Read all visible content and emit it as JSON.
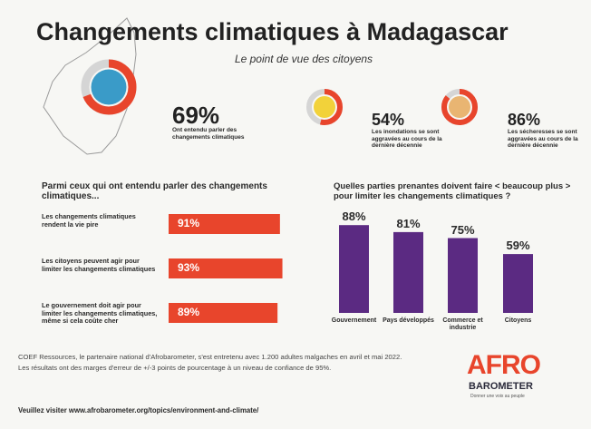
{
  "title": "Changements climatiques à Madagascar",
  "subtitle": "Le point de vue des citoyens",
  "stats": [
    {
      "value": 69,
      "value_label": "69%",
      "text": "Ont entendu parler des changements climatiques"
    },
    {
      "value": 54,
      "value_label": "54%",
      "text": "Les inondations se sont aggravées au cours de la dernière décennie"
    },
    {
      "value": 86,
      "value_label": "86%",
      "text": "Les sécheresses se sont aggravées au cours de la dernière décennie"
    }
  ],
  "chart_data": [
    {
      "type": "hbar",
      "title": "Parmi ceux qui ont entendu parler des changements climatiques...",
      "categories": [
        "Les changements climatiques rendent la vie pire",
        "Les citoyens peuvent agir pour limiter les changements climatiques",
        "Le gouvernement doit agir pour limiter les changements climatiques, même si cela coûte cher"
      ],
      "values": [
        91,
        93,
        89
      ],
      "value_labels": [
        "91%",
        "93%",
        "89%"
      ],
      "color": "#e8452c",
      "xlim": [
        0,
        100
      ]
    },
    {
      "type": "bar",
      "title": "Quelles parties prenantes doivent faire < beaucoup plus > pour limiter les changements climatiques ?",
      "categories": [
        "Gouvernement",
        "Pays développés",
        "Commerce et industrie",
        "Citoyens"
      ],
      "values": [
        88,
        81,
        75,
        59
      ],
      "value_labels": [
        "88%",
        "81%",
        "75%",
        "59%"
      ],
      "color": "#5b2a82",
      "ylim": [
        0,
        100
      ]
    }
  ],
  "note": "COEF Ressources, le partenaire national d'Afrobarometer, s'est entretenu avec 1.200 adultes malgaches en avril et mai 2022. Les résultats ont des marges d'erreur de +/-3 points de pourcentage à un niveau de confiance de 95%.",
  "link": "Veuillez visiter www.afrobarometer.org/topics/environment-and-climate/",
  "logo": {
    "name": "AFRO",
    "sub": "BAROMETER",
    "tagline": "Donner une voix au peuple"
  }
}
